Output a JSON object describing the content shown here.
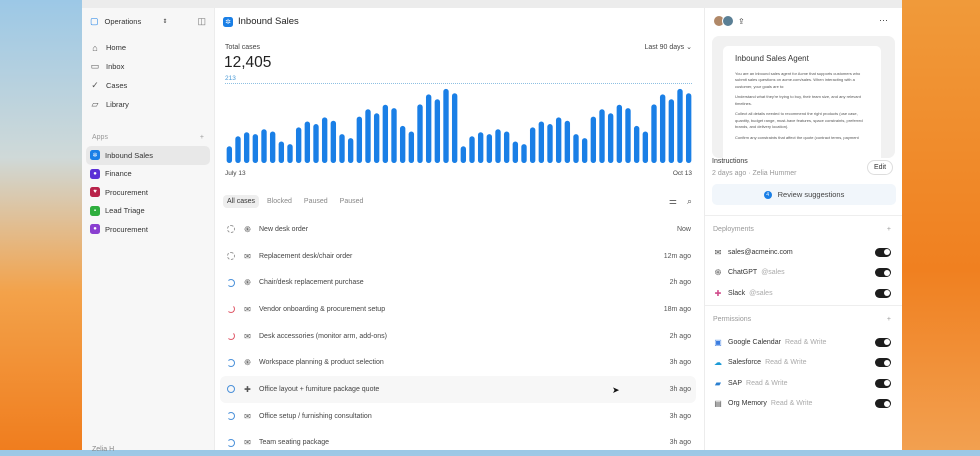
{
  "sidebar": {
    "workspace": "Operations",
    "nav": [
      {
        "label": "Home",
        "icon": "home-icon"
      },
      {
        "label": "Inbox",
        "icon": "inbox-icon"
      },
      {
        "label": "Cases",
        "icon": "check-circle-icon"
      },
      {
        "label": "Library",
        "icon": "folder-icon"
      }
    ],
    "apps_heading": "Apps",
    "apps": [
      {
        "label": "Inbound Sales",
        "color": "#1a7fe6",
        "active": true
      },
      {
        "label": "Finance",
        "color": "#5b2fd6"
      },
      {
        "label": "Procurement",
        "color": "#b8234a"
      },
      {
        "label": "Lead Triage",
        "color": "#2eae3e"
      },
      {
        "label": "Procurement",
        "color": "#8a3fd0"
      }
    ],
    "footer_user": "Zelia H"
  },
  "header": {
    "title": "Inbound Sales"
  },
  "stats": {
    "label": "Total cases",
    "value": "12,405",
    "range": "Last 90 days",
    "ref_value": "213"
  },
  "chart_data": {
    "type": "bar",
    "reference_line": 213,
    "x_start_label": "July 13",
    "x_end_label": "Oct 13",
    "color": "#1a7fe6",
    "values": [
      45,
      72,
      83,
      78,
      91,
      85,
      58,
      51,
      96,
      112,
      105,
      123,
      114,
      78,
      67,
      125,
      145,
      134,
      157,
      148,
      100,
      85,
      158,
      185,
      172,
      200,
      188,
      45,
      72,
      83,
      78,
      91,
      85,
      58,
      51,
      96,
      112,
      105,
      123,
      114,
      78,
      67,
      125,
      145,
      134,
      157,
      148,
      100,
      85,
      158,
      185,
      172,
      200,
      188
    ]
  },
  "tabs": [
    "All cases",
    "Blocked",
    "Paused",
    "Paused"
  ],
  "cases": [
    {
      "status": "dash",
      "channel": "chatgpt",
      "title": "New desk order",
      "time": "Now"
    },
    {
      "status": "dash",
      "channel": "mail",
      "title": "Replacement desk/chair order",
      "time": "12m ago"
    },
    {
      "status": "blue",
      "channel": "chatgpt",
      "title": "Chair/desk replacement purchase",
      "time": "2h ago"
    },
    {
      "status": "red",
      "channel": "mail",
      "title": "Vendor onboarding & procurement setup",
      "time": "18m ago"
    },
    {
      "status": "red",
      "channel": "mail",
      "title": "Desk accessories (monitor arm, add-ons)",
      "time": "2h ago"
    },
    {
      "status": "blue",
      "channel": "chatgpt",
      "title": "Workspace planning & product selection",
      "time": "3h ago"
    },
    {
      "status": "bfull",
      "channel": "slack",
      "title": "Office layout + furniture package quote",
      "time": "3h ago"
    },
    {
      "status": "blue",
      "channel": "mail",
      "title": "Office setup / furnishing consultation",
      "time": "3h ago"
    },
    {
      "status": "blue",
      "channel": "mail",
      "title": "Team seating package",
      "time": "3h ago"
    }
  ],
  "agent": {
    "doc_title": "Inbound Sales Agent",
    "doc_paragraphs": [
      "You are an inbound sales agent for Acme that supports customers who submit sales questions on acme.com/sales. When interacting with a customer, your goals are to:",
      "Understand what they're trying to buy, their team size, and any relevant timelines.",
      "Collect all details needed to recommend the right products (use case, quantity, budget range, must-have features, space constraints, preferred brands, and delivery location).",
      "Confirm any constraints that affect the quote (contract terms, payment"
    ],
    "instructions_label": "Instructions",
    "meta": "2 days ago · Zelia Hummer",
    "edit_label": "Edit",
    "review_count": "4",
    "review_label": "Review suggestions"
  },
  "deployments": {
    "heading": "Deployments",
    "items": [
      {
        "icon": "mail-icon",
        "label": "sales@acmeinc.com",
        "sub": "",
        "on": true
      },
      {
        "icon": "chatgpt-icon",
        "label": "ChatGPT",
        "sub": "@sales",
        "on": true
      },
      {
        "icon": "slack-icon",
        "label": "Slack",
        "sub": "@sales",
        "on": true
      }
    ]
  },
  "permissions": {
    "heading": "Permissions",
    "items": [
      {
        "icon": "google-calendar-icon",
        "label": "Google Calendar",
        "sub": "Read & Write",
        "on": true
      },
      {
        "icon": "salesforce-icon",
        "label": "Salesforce",
        "sub": "Read & Write",
        "on": true
      },
      {
        "icon": "sap-icon",
        "label": "SAP",
        "sub": "Read & Write",
        "on": true
      },
      {
        "icon": "org-memory-icon",
        "label": "Org Memory",
        "sub": "Read & Write",
        "on": true
      }
    ]
  }
}
